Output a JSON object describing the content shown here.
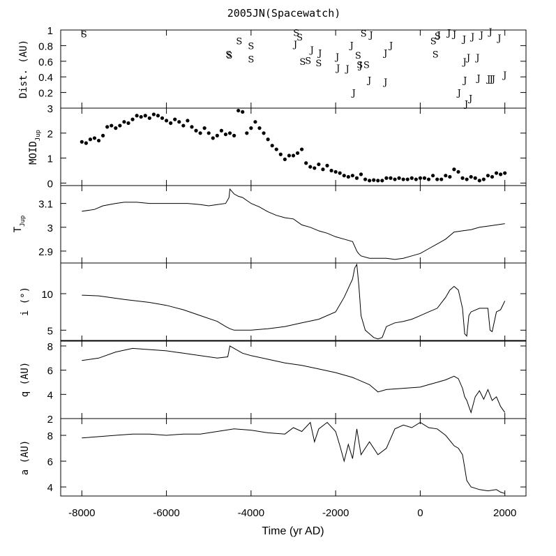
{
  "chart_data": [
    {
      "id": "dist",
      "type": "scatter",
      "title": "2005JN(Spacewatch)",
      "ylabel": "Dist. (AU)",
      "ylim": [
        0,
        1
      ],
      "xlim": [
        -8500,
        2500
      ],
      "yticks": [
        0.2,
        0.4,
        0.6,
        0.8,
        1
      ],
      "ytick_labels": [
        "0.2",
        "0.4",
        "0.6",
        "0.8",
        "1"
      ],
      "series": [
        {
          "name": "S",
          "points": [
            [
              -7950,
              0.95
            ],
            [
              -4530,
              0.69
            ],
            [
              -4510,
              0.68
            ],
            [
              -4280,
              0.86
            ],
            [
              -4000,
              0.8
            ],
            [
              -4000,
              0.63
            ],
            [
              -2930,
              0.97
            ],
            [
              -2850,
              0.91
            ],
            [
              -2780,
              0.6
            ],
            [
              -2650,
              0.61
            ],
            [
              -2400,
              0.58
            ],
            [
              -1470,
              0.68
            ],
            [
              -1430,
              0.56
            ],
            [
              -1340,
              0.96
            ],
            [
              -1270,
              0.56
            ],
            [
              310,
              0.86
            ],
            [
              360,
              0.69
            ],
            [
              410,
              0.93
            ]
          ]
        },
        {
          "name": "J",
          "points": [
            [
              -2950,
              0.82
            ],
            [
              -2560,
              0.75
            ],
            [
              -2370,
              0.71
            ],
            [
              -1960,
              0.66
            ],
            [
              -1940,
              0.52
            ],
            [
              -1720,
              0.51
            ],
            [
              -1620,
              0.81
            ],
            [
              -1570,
              0.2
            ],
            [
              -1410,
              0.55
            ],
            [
              -1200,
              0.36
            ],
            [
              -1160,
              0.94
            ],
            [
              -820,
              0.71
            ],
            [
              -690,
              0.81
            ],
            [
              -820,
              0.34
            ],
            [
              440,
              0.94
            ],
            [
              680,
              0.97
            ],
            [
              810,
              0.95
            ],
            [
              920,
              0.2
            ],
            [
              1040,
              0.89
            ],
            [
              1050,
              0.6
            ],
            [
              1060,
              0.36
            ],
            [
              1140,
              0.65
            ],
            [
              1190,
              0.13
            ],
            [
              1090,
              0.06
            ],
            [
              1240,
              0.92
            ],
            [
              1360,
              0.65
            ],
            [
              1380,
              0.39
            ],
            [
              1450,
              0.94
            ],
            [
              1660,
              0.98
            ],
            [
              1620,
              0.38
            ],
            [
              1680,
              0.38
            ],
            [
              1730,
              0.38
            ],
            [
              1870,
              0.9
            ],
            [
              2000,
              0.43
            ]
          ]
        }
      ]
    },
    {
      "id": "moid",
      "type": "scatter",
      "ylabel_main": "MOID",
      "ylabel_sub": "Jup",
      "ylim": [
        -0.1,
        3.0
      ],
      "yticks": [
        0,
        1,
        2,
        3
      ],
      "ytick_labels": [
        "0",
        "1",
        "2",
        "3"
      ],
      "x": [
        -8000,
        -7900,
        -7800,
        -7700,
        -7600,
        -7500,
        -7400,
        -7300,
        -7200,
        -7100,
        -7000,
        -6900,
        -6800,
        -6700,
        -6600,
        -6500,
        -6400,
        -6300,
        -6200,
        -6100,
        -6000,
        -5900,
        -5800,
        -5700,
        -5600,
        -5500,
        -5400,
        -5300,
        -5200,
        -5100,
        -5000,
        -4900,
        -4800,
        -4700,
        -4600,
        -4500,
        -4400,
        -4300,
        -4200,
        -4100,
        -4000,
        -3900,
        -3800,
        -3700,
        -3600,
        -3500,
        -3400,
        -3300,
        -3200,
        -3100,
        -3000,
        -2900,
        -2800,
        -2700,
        -2600,
        -2500,
        -2400,
        -2300,
        -2200,
        -2100,
        -2000,
        -1900,
        -1800,
        -1700,
        -1600,
        -1500,
        -1400,
        -1300,
        -1200,
        -1100,
        -1000,
        -900,
        -800,
        -700,
        -600,
        -500,
        -400,
        -300,
        -200,
        -100,
        0,
        100,
        200,
        300,
        400,
        500,
        600,
        700,
        800,
        900,
        1000,
        1100,
        1200,
        1300,
        1400,
        1500,
        1600,
        1700,
        1800,
        1900,
        2000
      ],
      "values": [
        1.65,
        1.6,
        1.75,
        1.8,
        1.7,
        1.9,
        2.25,
        2.3,
        2.2,
        2.3,
        2.45,
        2.4,
        2.55,
        2.7,
        2.65,
        2.7,
        2.6,
        2.75,
        2.7,
        2.6,
        2.5,
        2.4,
        2.55,
        2.45,
        2.3,
        2.5,
        2.25,
        2.1,
        2.0,
        2.2,
        2.0,
        1.8,
        1.9,
        2.1,
        1.95,
        2.0,
        1.9,
        2.9,
        2.85,
        2.0,
        2.2,
        2.45,
        2.2,
        2.0,
        1.75,
        1.5,
        1.35,
        1.15,
        0.95,
        1.1,
        1.1,
        1.2,
        1.35,
        0.8,
        0.65,
        0.6,
        0.75,
        0.55,
        0.7,
        0.5,
        0.45,
        0.4,
        0.3,
        0.25,
        0.3,
        0.2,
        0.35,
        0.15,
        0.1,
        0.12,
        0.1,
        0.1,
        0.2,
        0.2,
        0.15,
        0.2,
        0.15,
        0.15,
        0.2,
        0.15,
        0.2,
        0.2,
        0.15,
        0.3,
        0.15,
        0.15,
        0.3,
        0.25,
        0.55,
        0.45,
        0.2,
        0.15,
        0.25,
        0.2,
        0.1,
        0.15,
        0.3,
        0.25,
        0.4,
        0.35,
        0.4
      ]
    },
    {
      "id": "tjup",
      "type": "line",
      "ylabel_main": "T",
      "ylabel_sub": "Jup",
      "ylim": [
        2.85,
        3.175
      ],
      "yticks": [
        2.9,
        3,
        3.1
      ],
      "ytick_labels": [
        "2.9",
        "3",
        "3.1"
      ],
      "x": [
        -8000,
        -7700,
        -7500,
        -7200,
        -7000,
        -6700,
        -6400,
        -6100,
        -5800,
        -5500,
        -5200,
        -5000,
        -4800,
        -4600,
        -4520,
        -4500,
        -4400,
        -4300,
        -4200,
        -4000,
        -3800,
        -3600,
        -3400,
        -3200,
        -3000,
        -2800,
        -2600,
        -2400,
        -2200,
        -2000,
        -1800,
        -1600,
        -1500,
        -1460,
        -1400,
        -1200,
        -1000,
        -800,
        -600,
        -400,
        -200,
        0,
        200,
        400,
        600,
        800,
        1000,
        1200,
        1400,
        1600,
        1800,
        2000
      ],
      "values": [
        3.067,
        3.075,
        3.09,
        3.1,
        3.105,
        3.105,
        3.1,
        3.1,
        3.1,
        3.1,
        3.095,
        3.09,
        3.095,
        3.1,
        3.125,
        3.16,
        3.14,
        3.13,
        3.125,
        3.1,
        3.085,
        3.065,
        3.05,
        3.04,
        3.035,
        3.01,
        3.0,
        2.985,
        2.975,
        2.96,
        2.95,
        2.94,
        2.9,
        2.89,
        2.88,
        2.87,
        2.87,
        2.87,
        2.865,
        2.87,
        2.88,
        2.89,
        2.91,
        2.93,
        2.95,
        2.98,
        2.985,
        2.99,
        3.0,
        3.005,
        3.01,
        3.015
      ]
    },
    {
      "id": "inc",
      "type": "line",
      "ylabel": "i (°)",
      "ylim": [
        3.5,
        14.2
      ],
      "yticks": [
        5,
        10
      ],
      "ytick_labels": [
        "5",
        "10"
      ],
      "x": [
        -8000,
        -7600,
        -7000,
        -6400,
        -6000,
        -5600,
        -5200,
        -4800,
        -4600,
        -4500,
        -4400,
        -4000,
        -3600,
        -3200,
        -2800,
        -2400,
        -2000,
        -1800,
        -1600,
        -1550,
        -1500,
        -1450,
        -1400,
        -1300,
        -1200,
        -1100,
        -1000,
        -900,
        -800,
        -600,
        -400,
        -200,
        0,
        200,
        400,
        600,
        700,
        800,
        900,
        1000,
        1050,
        1100,
        1150,
        1200,
        1400,
        1600,
        1650,
        1700,
        1800,
        1900,
        2000
      ],
      "values": [
        9.8,
        9.7,
        9.2,
        8.8,
        8.4,
        7.8,
        7.0,
        6.2,
        5.5,
        5.2,
        5.0,
        5.0,
        5.2,
        5.5,
        6.0,
        6.5,
        7.5,
        9.5,
        12.0,
        13.5,
        14.0,
        11.0,
        7.0,
        5.0,
        4.5,
        4.0,
        3.8,
        4.0,
        5.5,
        6.0,
        6.2,
        6.5,
        7.0,
        7.5,
        8.0,
        9.5,
        10.5,
        11.0,
        10.5,
        8.0,
        4.5,
        4.2,
        7.0,
        7.5,
        8.0,
        8.0,
        5.0,
        4.8,
        7.5,
        7.8,
        9.0
      ]
    },
    {
      "id": "q",
      "type": "line",
      "ylabel": "q (AU)",
      "ylim": [
        2,
        8.4
      ],
      "yticks": [
        2,
        4,
        6,
        8
      ],
      "ytick_labels": [
        "2",
        "4",
        "6",
        "8"
      ],
      "x": [
        -8000,
        -7600,
        -7200,
        -6800,
        -6400,
        -6000,
        -5600,
        -5200,
        -4800,
        -4550,
        -4500,
        -4400,
        -4200,
        -4000,
        -3600,
        -3200,
        -2800,
        -2400,
        -2000,
        -1600,
        -1200,
        -1000,
        -800,
        -400,
        0,
        200,
        400,
        600,
        800,
        900,
        1000,
        1050,
        1100,
        1150,
        1200,
        1300,
        1400,
        1500,
        1600,
        1700,
        1800,
        1900,
        2000
      ],
      "values": [
        6.8,
        7.0,
        7.5,
        7.8,
        7.7,
        7.6,
        7.4,
        7.2,
        7.0,
        7.1,
        8.0,
        7.8,
        7.4,
        7.2,
        6.9,
        6.6,
        6.4,
        6.1,
        5.8,
        5.4,
        4.8,
        4.2,
        4.4,
        4.5,
        4.6,
        4.8,
        5.0,
        5.2,
        5.5,
        5.3,
        4.5,
        3.8,
        3.5,
        3.0,
        2.5,
        3.8,
        4.3,
        3.6,
        4.4,
        3.5,
        3.8,
        3.0,
        2.5
      ]
    },
    {
      "id": "a",
      "type": "line",
      "ylabel": "a (AU)",
      "ylim": [
        3.3,
        9.3
      ],
      "yticks": [
        4,
        6,
        8
      ],
      "ytick_labels": [
        "4",
        "6",
        "8"
      ],
      "x": [
        -8000,
        -7600,
        -7200,
        -6800,
        -6400,
        -6000,
        -5600,
        -5200,
        -4800,
        -4400,
        -4000,
        -3600,
        -3200,
        -3000,
        -2800,
        -2600,
        -2500,
        -2400,
        -2200,
        -2000,
        -1900,
        -1800,
        -1700,
        -1600,
        -1500,
        -1400,
        -1200,
        -1000,
        -800,
        -600,
        -400,
        -200,
        0,
        200,
        400,
        600,
        800,
        900,
        1000,
        1050,
        1100,
        1200,
        1400,
        1600,
        1800,
        1900,
        2000
      ],
      "values": [
        7.8,
        7.9,
        8.0,
        8.1,
        8.1,
        8.0,
        8.1,
        8.1,
        8.3,
        8.5,
        8.4,
        8.2,
        8.1,
        8.6,
        8.3,
        9.0,
        7.5,
        8.5,
        9.0,
        8.3,
        7.2,
        6.0,
        7.3,
        6.2,
        8.5,
        6.5,
        7.5,
        6.5,
        7.0,
        8.5,
        8.8,
        8.6,
        9.0,
        8.6,
        8.5,
        8.0,
        7.2,
        7.0,
        6.5,
        5.5,
        4.5,
        4.0,
        3.8,
        3.7,
        3.8,
        3.6,
        3.5
      ]
    }
  ],
  "x_axis": {
    "label": "Time (yr AD)",
    "ticks": [
      -8000,
      -6000,
      -4000,
      -2000,
      0,
      2000
    ],
    "tick_labels": [
      "-8000",
      "-6000",
      "-4000",
      "-2000",
      "0",
      "2000"
    ]
  }
}
